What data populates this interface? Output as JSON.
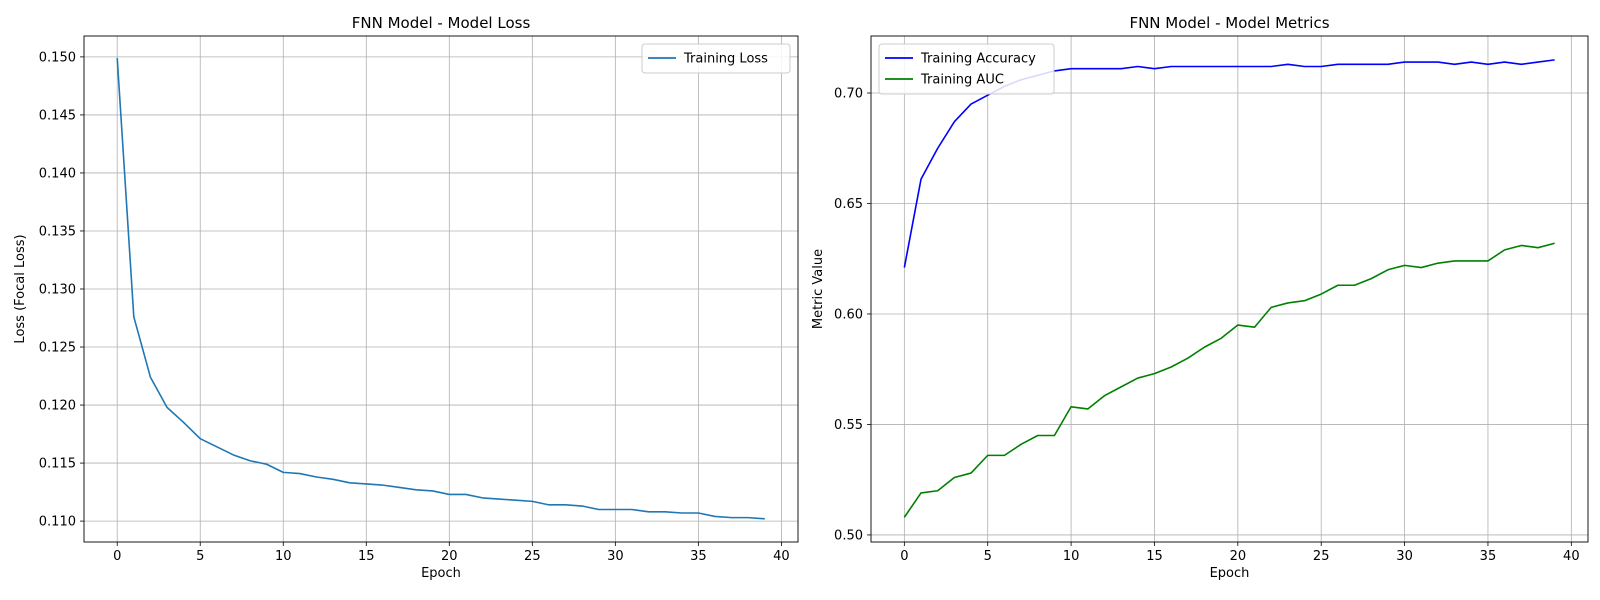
{
  "chart_data": [
    {
      "type": "line",
      "title": "FNN Model - Model Loss",
      "xlabel": "Epoch",
      "ylabel": "Loss (Focal Loss)",
      "xlim": [
        -2,
        41
      ],
      "ylim": [
        0.1082,
        0.1518
      ],
      "xticks": [
        0,
        5,
        10,
        15,
        20,
        25,
        30,
        35,
        40
      ],
      "yticks": [
        0.11,
        0.115,
        0.12,
        0.125,
        0.13,
        0.135,
        0.14,
        0.145,
        0.15
      ],
      "ytick_decimals": 3,
      "grid": true,
      "legend_position": "upper right",
      "x": [
        0,
        1,
        2,
        3,
        4,
        5,
        6,
        7,
        8,
        9,
        10,
        11,
        12,
        13,
        14,
        15,
        16,
        17,
        18,
        19,
        20,
        21,
        22,
        23,
        24,
        25,
        26,
        27,
        28,
        29,
        30,
        31,
        32,
        33,
        34,
        35,
        36,
        37,
        38,
        39
      ],
      "series": [
        {
          "name": "Training Loss",
          "color": "#1f77b4",
          "values": [
            0.1499,
            0.1276,
            0.1224,
            0.1198,
            0.1185,
            0.1171,
            0.1164,
            0.1157,
            0.1152,
            0.1149,
            0.1142,
            0.1141,
            0.1138,
            0.1136,
            0.1133,
            0.1132,
            0.1131,
            0.1129,
            0.1127,
            0.1126,
            0.1123,
            0.1123,
            0.112,
            0.1119,
            0.1118,
            0.1117,
            0.1114,
            0.1114,
            0.1113,
            0.111,
            0.111,
            0.111,
            0.1108,
            0.1108,
            0.1107,
            0.1107,
            0.1104,
            0.1103,
            0.1103,
            0.1102
          ]
        }
      ]
    },
    {
      "type": "line",
      "title": "FNN Model - Model Metrics",
      "xlabel": "Epoch",
      "ylabel": "Metric Value",
      "xlim": [
        -2,
        41
      ],
      "ylim": [
        0.4968,
        0.7258
      ],
      "xticks": [
        0,
        5,
        10,
        15,
        20,
        25,
        30,
        35,
        40
      ],
      "yticks": [
        0.5,
        0.55,
        0.6,
        0.65,
        0.7
      ],
      "ytick_decimals": 2,
      "grid": true,
      "legend_position": "upper left",
      "x": [
        0,
        1,
        2,
        3,
        4,
        5,
        6,
        7,
        8,
        9,
        10,
        11,
        12,
        13,
        14,
        15,
        16,
        17,
        18,
        19,
        20,
        21,
        22,
        23,
        24,
        25,
        26,
        27,
        28,
        29,
        30,
        31,
        32,
        33,
        34,
        35,
        36,
        37,
        38,
        39
      ],
      "series": [
        {
          "name": "Training Accuracy",
          "color": "#0000ff",
          "values": [
            0.621,
            0.661,
            0.675,
            0.687,
            0.695,
            0.699,
            0.703,
            0.706,
            0.708,
            0.71,
            0.711,
            0.711,
            0.711,
            0.711,
            0.712,
            0.711,
            0.712,
            0.712,
            0.712,
            0.712,
            0.712,
            0.712,
            0.712,
            0.713,
            0.712,
            0.712,
            0.713,
            0.713,
            0.713,
            0.713,
            0.714,
            0.714,
            0.714,
            0.713,
            0.714,
            0.713,
            0.714,
            0.713,
            0.714,
            0.715
          ]
        },
        {
          "name": "Training AUC",
          "color": "#008000",
          "values": [
            0.508,
            0.519,
            0.52,
            0.526,
            0.528,
            0.536,
            0.536,
            0.541,
            0.545,
            0.545,
            0.558,
            0.557,
            0.563,
            0.567,
            0.571,
            0.573,
            0.576,
            0.58,
            0.585,
            0.589,
            0.595,
            0.594,
            0.603,
            0.605,
            0.606,
            0.609,
            0.613,
            0.613,
            0.616,
            0.62,
            0.622,
            0.621,
            0.623,
            0.624,
            0.624,
            0.624,
            0.629,
            0.631,
            0.63,
            0.632
          ]
        }
      ]
    }
  ]
}
